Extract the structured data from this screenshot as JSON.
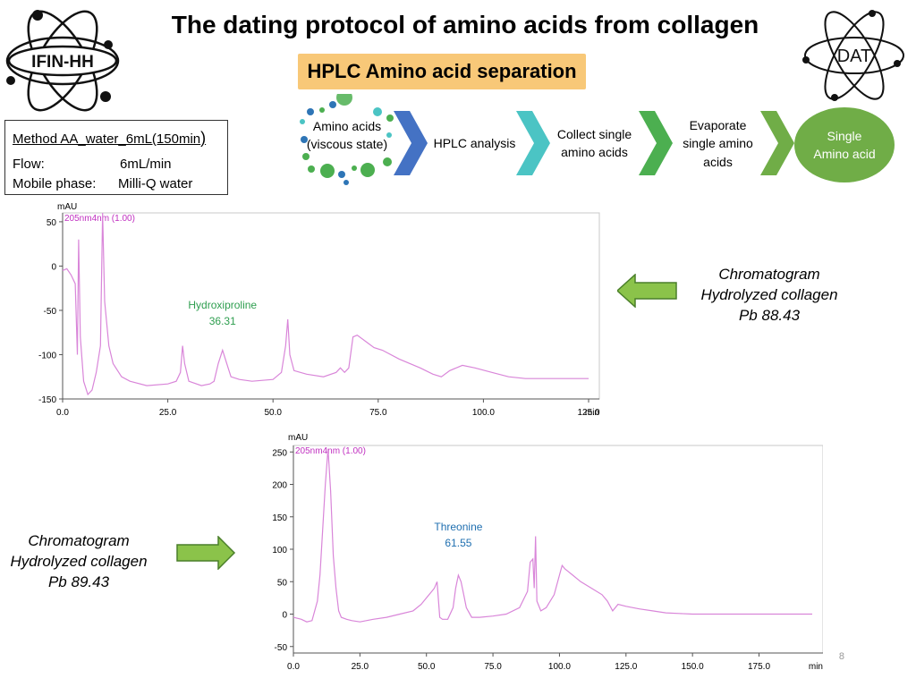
{
  "slide": {
    "title": "The dating protocol of amino acids from collagen",
    "subtitle": "HPLC Amino acid separation",
    "page_number": "8",
    "logos": {
      "left": "IFIN-HH",
      "right": "DAT"
    }
  },
  "method": {
    "title": "Method AA_water_6mL(150min",
    "title_suffix": ")",
    "rows": [
      {
        "label": "Flow:",
        "value": "6mL/min"
      },
      {
        "label": "Mobile phase:",
        "value": "Milli-Q water"
      }
    ]
  },
  "process": {
    "steps": [
      {
        "line1": "Amino acids",
        "line2": "(viscous state)",
        "line3": ""
      },
      {
        "line1": "HPLC analysis",
        "line2": "",
        "line3": ""
      },
      {
        "line1": "Collect single",
        "line2": "amino acids",
        "line3": ""
      },
      {
        "line1": "Evaporate",
        "line2": "single amino",
        "line3": "acids"
      },
      {
        "line1": "Single",
        "line2": "Amino acid",
        "line3": ""
      }
    ],
    "arrow_colors": [
      "#4472c4",
      "#4bc4c4",
      "#4caf50",
      "#70ad47"
    ],
    "final_circle_color": "#70ad47"
  },
  "side_labels": {
    "top": {
      "line1": "Chromatogram",
      "line2": "Hydrolyzed collagen",
      "line3": "Pb 88.43"
    },
    "bottom": {
      "line1": "Chromatogram",
      "line2": "Hydrolyzed collagen",
      "line3": "Pb 89.43"
    },
    "arrow_color": "#8bc34a"
  },
  "chart_data": [
    {
      "type": "line",
      "ylabel": "mAU",
      "xlabel": "min",
      "legend": "205nm4nm (1.00)",
      "xlim": [
        0,
        125
      ],
      "ylim": [
        -150,
        60
      ],
      "xticks": [
        "0.0",
        "25.0",
        "50.0",
        "75.0",
        "100.0",
        "125.0"
      ],
      "xtick_values": [
        0,
        25,
        50,
        75,
        100,
        125
      ],
      "yticks": [
        "50",
        "0",
        "-50",
        "-100",
        "-150"
      ],
      "ytick_values": [
        50,
        0,
        -50,
        -100,
        -150
      ],
      "annotation": {
        "name": "Hydroxiproline",
        "value": "36.31",
        "x": 38
      },
      "line_color": "#d986d9",
      "series": [
        {
          "values": [
            [
              0,
              -5
            ],
            [
              1,
              -3
            ],
            [
              2,
              -10
            ],
            [
              3,
              -20
            ],
            [
              3.5,
              -100
            ],
            [
              3.8,
              30
            ],
            [
              4.2,
              -80
            ],
            [
              5,
              -130
            ],
            [
              6,
              -145
            ],
            [
              7,
              -140
            ],
            [
              8,
              -120
            ],
            [
              9,
              -90
            ],
            [
              9.5,
              60
            ],
            [
              10,
              -40
            ],
            [
              11,
              -90
            ],
            [
              12,
              -110
            ],
            [
              14,
              -125
            ],
            [
              16,
              -130
            ],
            [
              20,
              -135
            ],
            [
              25,
              -133
            ],
            [
              27,
              -130
            ],
            [
              28,
              -120
            ],
            [
              28.5,
              -90
            ],
            [
              29,
              -110
            ],
            [
              30,
              -130
            ],
            [
              33,
              -135
            ],
            [
              35,
              -133
            ],
            [
              36,
              -130
            ],
            [
              37,
              -110
            ],
            [
              38,
              -95
            ],
            [
              39,
              -110
            ],
            [
              40,
              -125
            ],
            [
              42,
              -128
            ],
            [
              45,
              -130
            ],
            [
              50,
              -128
            ],
            [
              52,
              -120
            ],
            [
              53,
              -90
            ],
            [
              53.5,
              -60
            ],
            [
              54,
              -100
            ],
            [
              55,
              -118
            ],
            [
              58,
              -122
            ],
            [
              62,
              -125
            ],
            [
              65,
              -120
            ],
            [
              66,
              -115
            ],
            [
              67,
              -120
            ],
            [
              68,
              -115
            ],
            [
              69,
              -80
            ],
            [
              70,
              -78
            ],
            [
              72,
              -85
            ],
            [
              74,
              -92
            ],
            [
              76,
              -95
            ],
            [
              80,
              -105
            ],
            [
              85,
              -115
            ],
            [
              88,
              -122
            ],
            [
              90,
              -125
            ],
            [
              92,
              -118
            ],
            [
              95,
              -112
            ],
            [
              98,
              -115
            ],
            [
              102,
              -120
            ],
            [
              106,
              -125
            ],
            [
              110,
              -127
            ],
            [
              115,
              -127
            ],
            [
              125,
              -127
            ]
          ]
        }
      ]
    },
    {
      "type": "line",
      "ylabel": "mAU",
      "xlabel": "min",
      "legend": "205nm4nm (1.00)",
      "xlim": [
        0,
        195
      ],
      "ylim": [
        -60,
        260
      ],
      "xticks": [
        "0.0",
        "25.0",
        "50.0",
        "75.0",
        "100.0",
        "125.0",
        "150.0",
        "175.0"
      ],
      "xtick_values": [
        0,
        25,
        50,
        75,
        100,
        125,
        150,
        175
      ],
      "yticks": [
        "250",
        "200",
        "150",
        "100",
        "50",
        "0",
        "-50"
      ],
      "ytick_values": [
        250,
        200,
        150,
        100,
        50,
        0,
        -50
      ],
      "annotation": {
        "name": "Threonine",
        "value": "61.55",
        "x": 62
      },
      "line_color": "#d986d9",
      "series": [
        {
          "values": [
            [
              0,
              -5
            ],
            [
              3,
              -8
            ],
            [
              5,
              -12
            ],
            [
              7,
              -10
            ],
            [
              9,
              20
            ],
            [
              10,
              60
            ],
            [
              11,
              130
            ],
            [
              12,
              200
            ],
            [
              13,
              255
            ],
            [
              14,
              190
            ],
            [
              15,
              90
            ],
            [
              16,
              40
            ],
            [
              17,
              5
            ],
            [
              18,
              -5
            ],
            [
              20,
              -8
            ],
            [
              22,
              -10
            ],
            [
              25,
              -12
            ],
            [
              30,
              -8
            ],
            [
              35,
              -5
            ],
            [
              40,
              0
            ],
            [
              45,
              5
            ],
            [
              48,
              15
            ],
            [
              50,
              25
            ],
            [
              52,
              35
            ],
            [
              53,
              40
            ],
            [
              54,
              50
            ],
            [
              55,
              -5
            ],
            [
              56,
              -8
            ],
            [
              58,
              -8
            ],
            [
              60,
              10
            ],
            [
              61,
              40
            ],
            [
              62,
              60
            ],
            [
              63,
              50
            ],
            [
              64,
              30
            ],
            [
              65,
              10
            ],
            [
              67,
              -5
            ],
            [
              70,
              -5
            ],
            [
              75,
              -3
            ],
            [
              80,
              0
            ],
            [
              85,
              10
            ],
            [
              88,
              35
            ],
            [
              89,
              80
            ],
            [
              90,
              85
            ],
            [
              90.5,
              40
            ],
            [
              91,
              120
            ],
            [
              91.5,
              20
            ],
            [
              93,
              5
            ],
            [
              95,
              10
            ],
            [
              98,
              30
            ],
            [
              100,
              60
            ],
            [
              101,
              75
            ],
            [
              102,
              70
            ],
            [
              105,
              60
            ],
            [
              108,
              50
            ],
            [
              112,
              40
            ],
            [
              116,
              30
            ],
            [
              118,
              20
            ],
            [
              120,
              5
            ],
            [
              122,
              15
            ],
            [
              125,
              12
            ],
            [
              130,
              8
            ],
            [
              135,
              5
            ],
            [
              140,
              2
            ],
            [
              145,
              1
            ],
            [
              150,
              0
            ],
            [
              160,
              0
            ],
            [
              170,
              0
            ],
            [
              180,
              0
            ],
            [
              195,
              0
            ]
          ]
        }
      ]
    }
  ]
}
